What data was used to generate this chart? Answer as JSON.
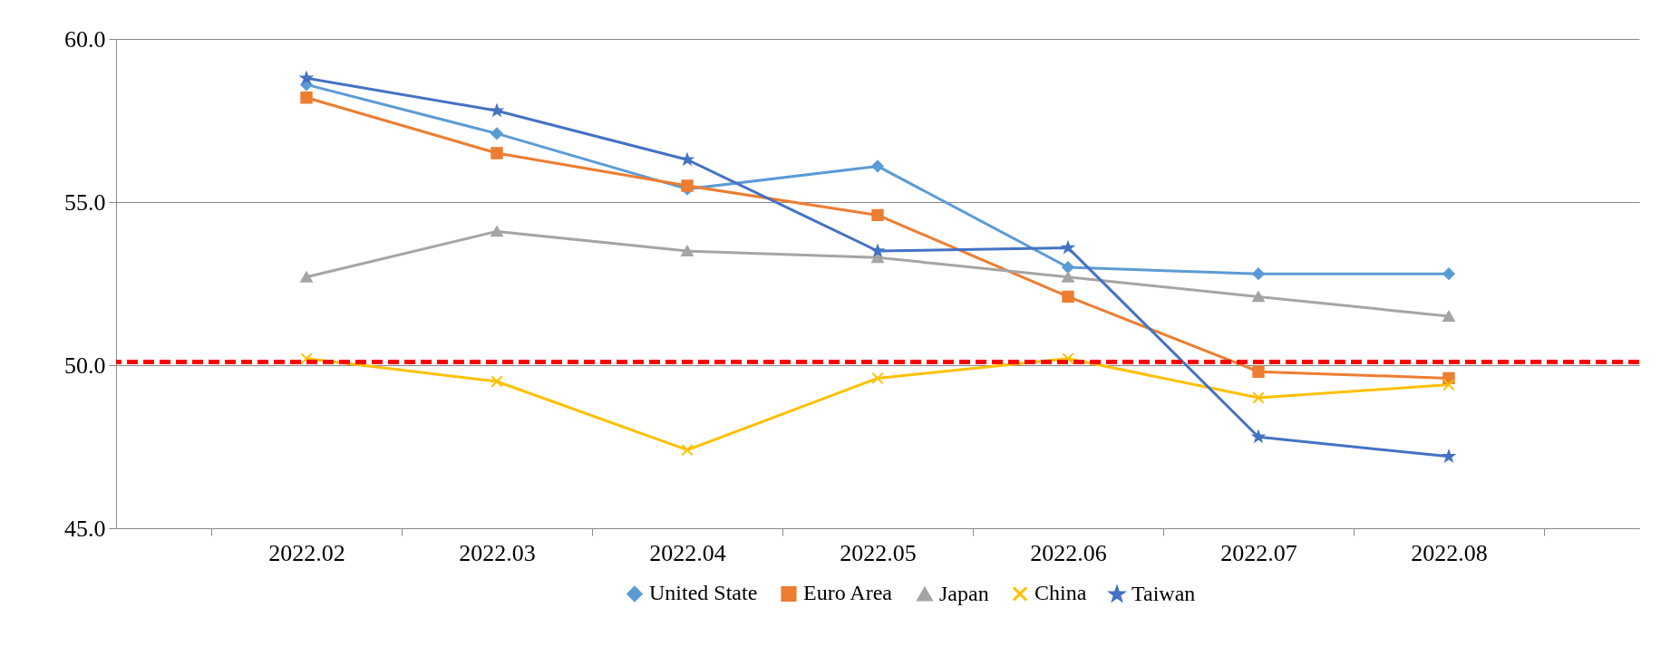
{
  "chart_data": {
    "type": "line",
    "categories": [
      "2022.02",
      "2022.03",
      "2022.04",
      "2022.05",
      "2022.06",
      "2022.07",
      "2022.08"
    ],
    "series": [
      {
        "name": "United State",
        "color": "#5b9bd5",
        "marker": "diamond",
        "values": [
          58.6,
          57.1,
          55.4,
          56.1,
          53.0,
          52.8,
          52.8
        ]
      },
      {
        "name": "Euro Area",
        "color": "#ed7d31",
        "marker": "square",
        "values": [
          58.2,
          56.5,
          55.5,
          54.6,
          52.1,
          49.8,
          49.6
        ]
      },
      {
        "name": "Japan",
        "color": "#a5a5a5",
        "marker": "triangle",
        "values": [
          52.7,
          54.1,
          53.5,
          53.3,
          52.7,
          52.1,
          51.5
        ]
      },
      {
        "name": "China",
        "color": "#ffc000",
        "marker": "cross",
        "values": [
          50.2,
          49.5,
          47.4,
          49.6,
          50.2,
          49.0,
          49.4
        ]
      },
      {
        "name": "Taiwan",
        "color": "#4472c4",
        "marker": "star",
        "values": [
          58.8,
          57.8,
          56.3,
          53.5,
          53.6,
          47.8,
          47.2
        ]
      }
    ],
    "ylim": [
      45,
      60
    ],
    "yticks": [
      {
        "value": 45,
        "label": "45.0"
      },
      {
        "value": 50,
        "label": "50.0"
      },
      {
        "value": 55,
        "label": "55.0"
      },
      {
        "value": 60,
        "label": "60.0"
      }
    ],
    "grid": "y",
    "legend": "bottom",
    "ref_lines": [
      {
        "axis": "y",
        "value": 50.1,
        "color": "#ff0000",
        "line_style": "dashed"
      }
    ]
  }
}
